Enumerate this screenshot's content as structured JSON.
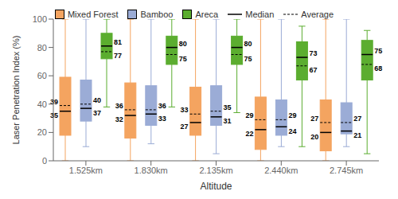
{
  "chart_data": {
    "type": "box",
    "xlabel": "Altitude",
    "ylabel": "Laser Penetration Index (%)",
    "categories": [
      "1.525km",
      "1.830km",
      "2.135km",
      "2.440km",
      "2.745km"
    ],
    "series": [
      {
        "name": "Mixed Forest",
        "color": "#F4A460",
        "whislo": [
          0,
          0,
          0,
          0,
          0
        ],
        "q1": [
          18,
          16,
          18,
          8,
          7
        ],
        "median": [
          35,
          32,
          27,
          22,
          20
        ],
        "mean": [
          39,
          36,
          33,
          29,
          27
        ],
        "q3": [
          59,
          55,
          52,
          45,
          43
        ],
        "whishi": [
          100,
          100,
          100,
          100,
          100
        ]
      },
      {
        "name": "Bamboo",
        "color": "#9BACD6",
        "whislo": [
          10,
          12,
          5,
          10,
          10
        ],
        "q1": [
          28,
          25,
          25,
          18,
          19
        ],
        "median": [
          37,
          33,
          31,
          24,
          21
        ],
        "mean": [
          40,
          36,
          35,
          29,
          27
        ],
        "q3": [
          57,
          53,
          53,
          43,
          41
        ],
        "whishi": [
          100,
          100,
          100,
          100,
          100
        ]
      },
      {
        "name": "Areca",
        "color": "#5BAD2F",
        "whislo": [
          38,
          38,
          34,
          10,
          5
        ],
        "q1": [
          72,
          68,
          68,
          57,
          57
        ],
        "median": [
          81,
          80,
          80,
          73,
          75
        ],
        "mean": [
          77,
          75,
          75,
          67,
          68
        ],
        "q3": [
          90,
          88,
          88,
          84,
          85
        ],
        "whishi": [
          100,
          100,
          100,
          95,
          92
        ]
      }
    ],
    "median_label": "Median",
    "mean_label": "Average",
    "ylim": [
      0,
      100
    ],
    "yticks": [
      0,
      20,
      40,
      60,
      80,
      100
    ],
    "legend": "top",
    "data_labels": true,
    "grid": false
  }
}
